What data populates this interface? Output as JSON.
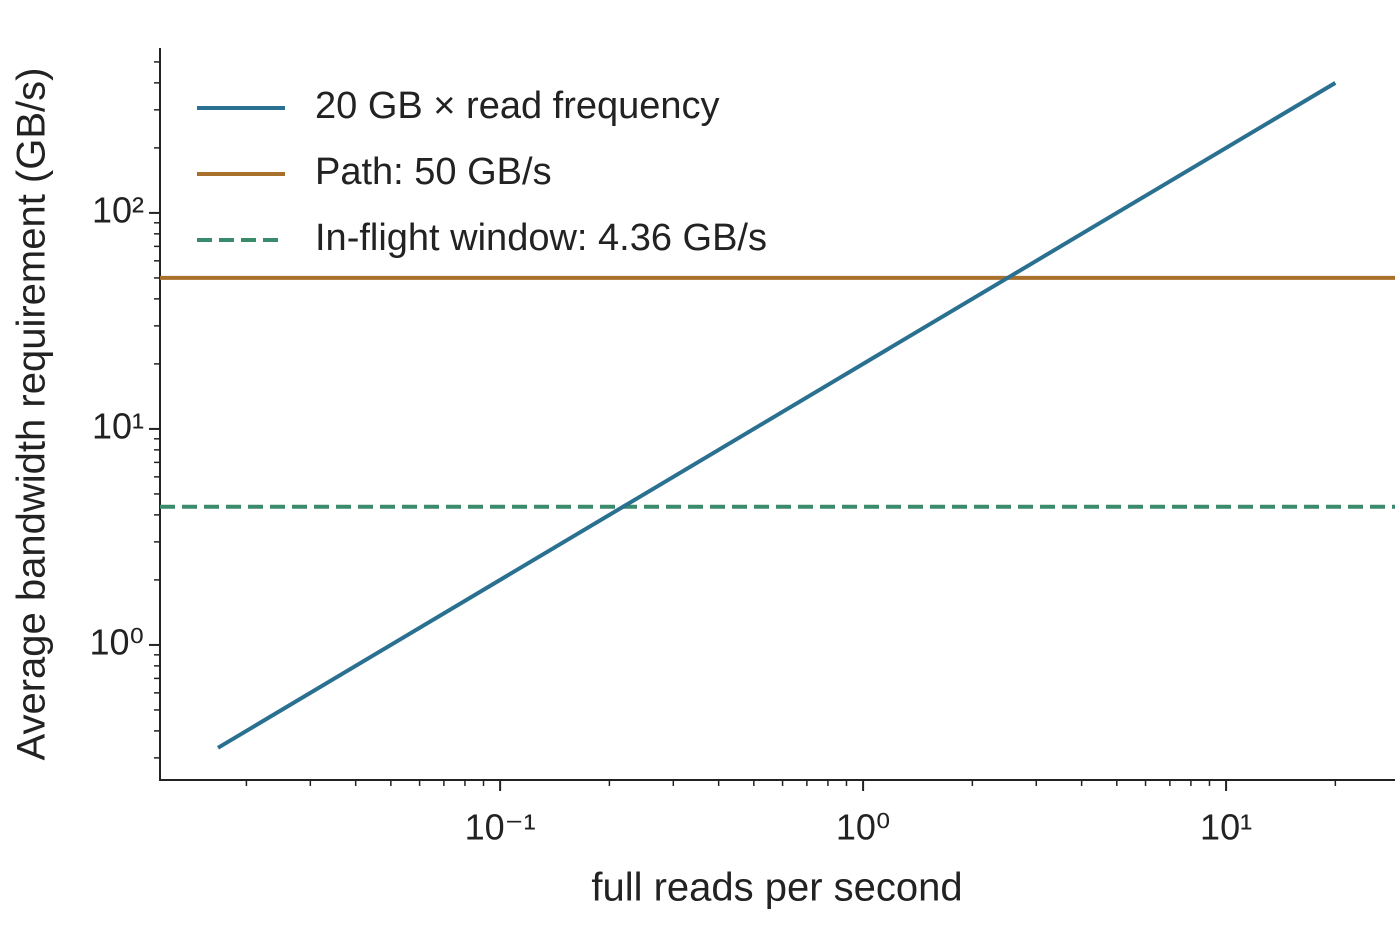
{
  "chart_data": {
    "type": "line",
    "xlabel": "full reads per second",
    "ylabel": "Average bandwidth requirement (GB/s)",
    "xscale": "log",
    "yscale": "log",
    "xlim": [
      0.01156,
      29.2
    ],
    "ylim": [
      0.237,
      580
    ],
    "xticks": [
      {
        "value": 0.1,
        "label": "10⁻¹"
      },
      {
        "value": 1,
        "label": "10⁰"
      },
      {
        "value": 10,
        "label": "10¹"
      }
    ],
    "yticks": [
      {
        "value": 1,
        "label": "10⁰"
      },
      {
        "value": 10,
        "label": "10¹"
      },
      {
        "value": 100,
        "label": "10²"
      }
    ],
    "xminorticks": [
      0.02,
      0.03,
      0.04,
      0.05,
      0.06,
      0.07,
      0.08,
      0.09,
      0.2,
      0.3,
      0.4,
      0.5,
      0.6,
      0.7,
      0.8,
      0.9,
      2,
      3,
      4,
      5,
      6,
      7,
      8,
      9,
      20
    ],
    "yminorticks": [
      0.3,
      0.4,
      0.5,
      0.6,
      0.7,
      0.8,
      0.9,
      2,
      3,
      4,
      5,
      6,
      7,
      8,
      9,
      20,
      30,
      40,
      50,
      60,
      70,
      80,
      90,
      200,
      300,
      400,
      500
    ],
    "legend": "upper left",
    "series": [
      {
        "name": "20 GB × read frequency",
        "color": "#2a7090",
        "x": [
          0.0167,
          20
        ],
        "values": [
          0.334,
          400
        ]
      }
    ],
    "hlines": [
      {
        "name": "Path: 50 GB/s",
        "color": "#a8702a",
        "value": 50,
        "style": "solid"
      },
      {
        "name": "In-flight window: 4.36 GB/s",
        "color": "#3a8a6c",
        "value": 4.36,
        "style": "dashed"
      }
    ]
  }
}
